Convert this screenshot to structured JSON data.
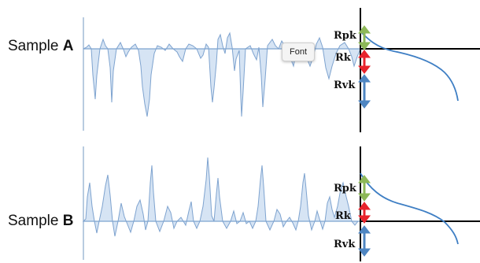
{
  "samples": [
    {
      "prefix": "Sample ",
      "letter": "A"
    },
    {
      "prefix": "Sample ",
      "letter": "B"
    }
  ],
  "parameters": {
    "a": {
      "rpk": "Rpk",
      "rk": "Rk",
      "rvk": "Rvk"
    },
    "b": {
      "rpk": "Rpk",
      "rk": "Rk",
      "rvk": "Rvk"
    }
  },
  "tooltip": {
    "text": "Font"
  },
  "colors": {
    "profile_fill": "#d6e4f4",
    "profile_line": "#7ea3cf",
    "axis": "#000000",
    "curve": "#3f7fc4",
    "rpk_arrow": "#8db858",
    "rk_arrow": "#e8232c",
    "rvk_arrow": "#4f86c2"
  }
}
